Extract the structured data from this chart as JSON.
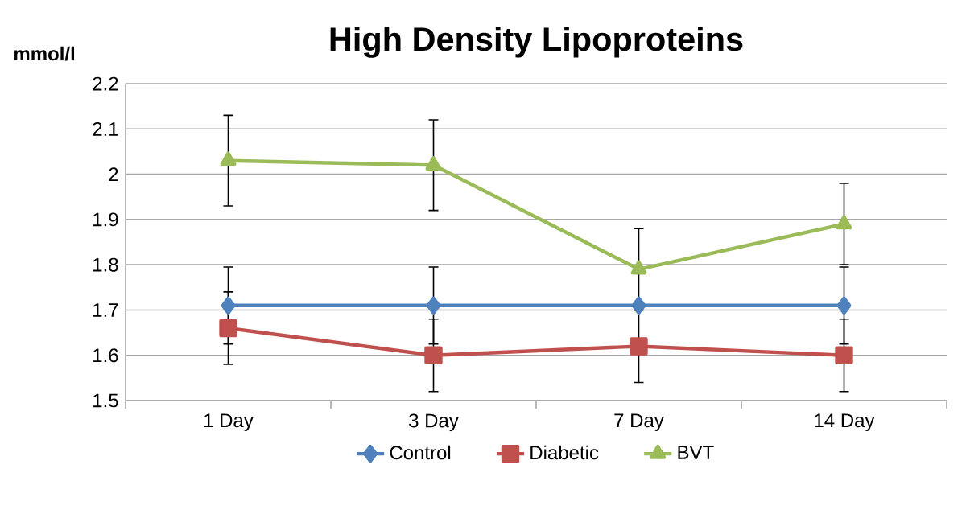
{
  "chart_data": {
    "type": "line",
    "title": "High Density Lipoproteins",
    "ylabel": "mmol/l",
    "categories": [
      "1 Day",
      "3 Day",
      "7 Day",
      "14 Day"
    ],
    "series": [
      {
        "name": "Control",
        "color": "#4f81bd",
        "marker": "diamond",
        "values": [
          1.71,
          1.71,
          1.71,
          1.71
        ],
        "errors": [
          0.085,
          0.085,
          null,
          0.085
        ]
      },
      {
        "name": "Diabetic",
        "color": "#c0504d",
        "marker": "square",
        "values": [
          1.66,
          1.6,
          1.62,
          1.6
        ],
        "errors": [
          0.08,
          0.08,
          0.08,
          0.08
        ]
      },
      {
        "name": "BVT",
        "color": "#9bbb59",
        "marker": "triangle",
        "values": [
          2.03,
          2.02,
          1.79,
          1.89
        ],
        "errors": [
          0.1,
          0.1,
          0.09,
          0.09
        ]
      }
    ],
    "ylim": [
      1.5,
      2.2
    ],
    "yticks": [
      1.5,
      1.6,
      1.7,
      1.8,
      1.9,
      2,
      2.1,
      2.2
    ],
    "grid": "y",
    "legend": "bottom"
  }
}
